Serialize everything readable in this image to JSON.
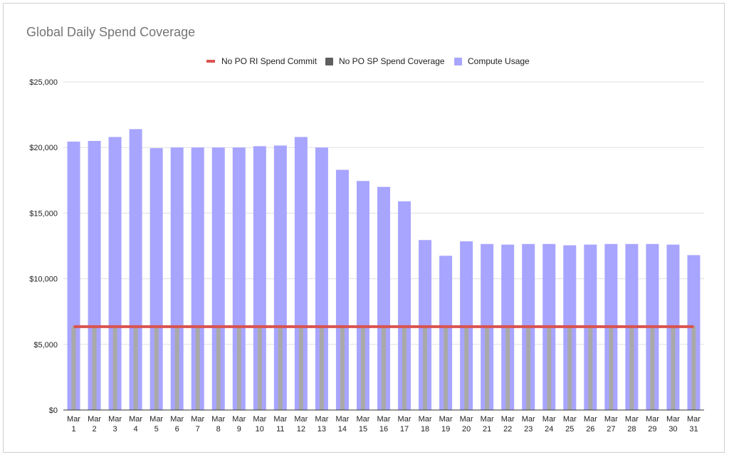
{
  "chart_data": {
    "type": "bar",
    "title": "Global Daily Spend Coverage",
    "ylim": [
      0,
      25000
    ],
    "yticks": [
      "$0",
      "$5,000",
      "$10,000",
      "$15,000",
      "$20,000",
      "$25,000"
    ],
    "ytick_values": [
      0,
      5000,
      10000,
      15000,
      20000,
      25000
    ],
    "categories_top": [
      "Mar",
      "Mar",
      "Mar",
      "Mar",
      "Mar",
      "Mar",
      "Mar",
      "Mar",
      "Mar",
      "Mar",
      "Mar",
      "Mar",
      "Mar",
      "Mar",
      "Mar",
      "Mar",
      "Mar",
      "Mar",
      "Mar",
      "Mar",
      "Mar",
      "Mar",
      "Mar",
      "Mar",
      "Mar",
      "Mar",
      "Mar",
      "Mar",
      "Mar",
      "Mar",
      "Mar"
    ],
    "categories_bottom": [
      "1",
      "2",
      "3",
      "4",
      "5",
      "6",
      "7",
      "8",
      "9",
      "10",
      "11",
      "12",
      "13",
      "14",
      "15",
      "16",
      "17",
      "18",
      "19",
      "20",
      "21",
      "22",
      "23",
      "24",
      "25",
      "26",
      "27",
      "28",
      "29",
      "30",
      "31"
    ],
    "grid": true,
    "legend_position": "top",
    "series": [
      {
        "name": "No PO RI Spend Commit",
        "kind": "line",
        "color": "#d9534f",
        "values": [
          6350,
          6350,
          6350,
          6350,
          6350,
          6350,
          6350,
          6350,
          6350,
          6350,
          6350,
          6350,
          6350,
          6350,
          6350,
          6350,
          6350,
          6350,
          6350,
          6350,
          6350,
          6350,
          6350,
          6350,
          6350,
          6350,
          6350,
          6350,
          6350,
          6350,
          6350
        ]
      },
      {
        "name": "No PO SP Spend Coverage",
        "kind": "bar",
        "color": "#5f5f5f",
        "values": [
          6400,
          6400,
          6400,
          6400,
          6400,
          6400,
          6400,
          6400,
          6400,
          6400,
          6400,
          6400,
          6400,
          6400,
          6400,
          6400,
          6400,
          6400,
          6400,
          6400,
          6400,
          6400,
          6400,
          6400,
          6400,
          6400,
          6400,
          6400,
          6400,
          6400,
          6400
        ]
      },
      {
        "name": "Compute Usage",
        "kind": "bar",
        "color": "#a8a5ff",
        "values": [
          20450,
          20500,
          20800,
          21400,
          19950,
          20000,
          20000,
          20000,
          20000,
          20100,
          20150,
          20800,
          20000,
          18300,
          17450,
          17000,
          15900,
          12950,
          11750,
          12850,
          12650,
          12600,
          12650,
          12650,
          12550,
          12600,
          12650,
          12650,
          12650,
          12600,
          11800
        ]
      }
    ]
  }
}
